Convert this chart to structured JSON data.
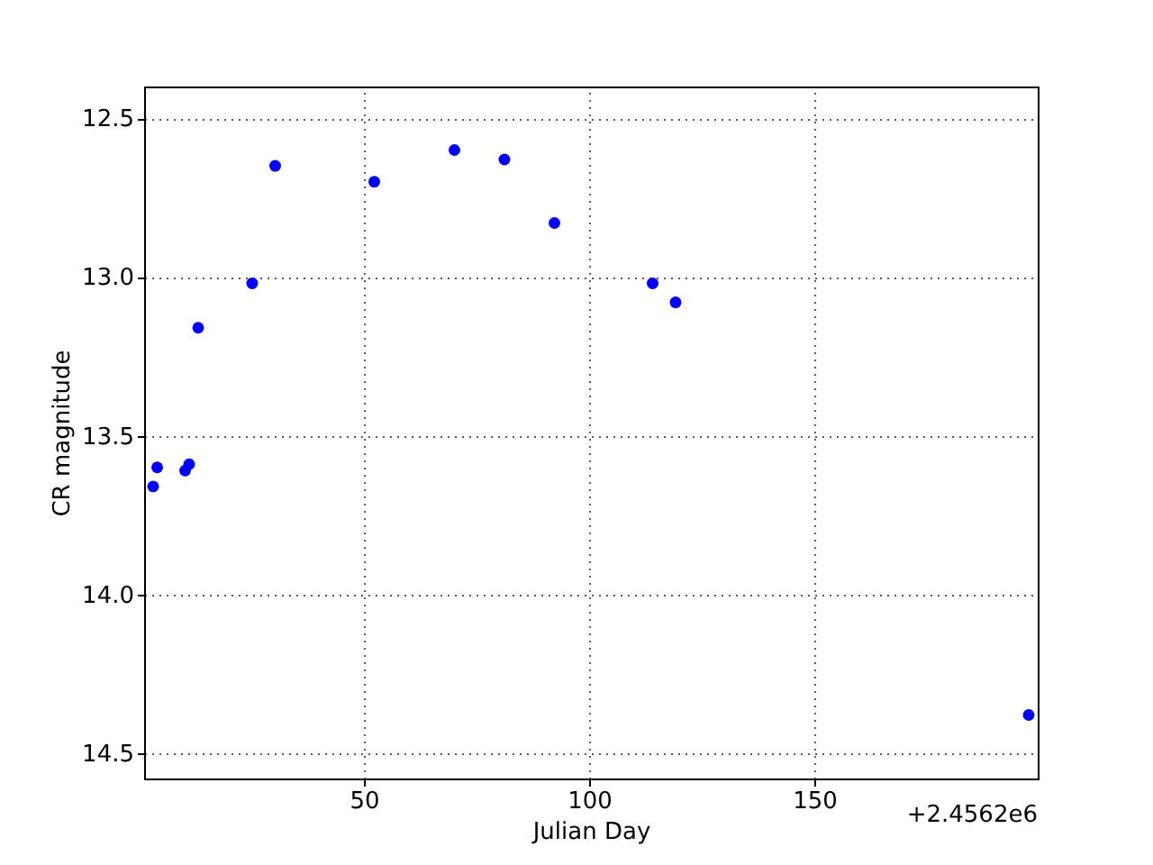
{
  "chart_data": {
    "type": "scatter",
    "xlabel": "Julian Day",
    "ylabel": "CR magnitude",
    "x": [
      3.2,
      4.1,
      10.3,
      11.2,
      13.2,
      25.2,
      30.3,
      52.3,
      70.1,
      81.2,
      92.3,
      114.1,
      119.2,
      197.6
    ],
    "values": [
      13.66,
      13.6,
      13.61,
      13.59,
      13.16,
      13.02,
      12.65,
      12.7,
      12.6,
      12.63,
      12.83,
      13.02,
      13.08,
      14.38
    ],
    "color": "#0000ff",
    "marker": "circle",
    "xlim": [
      1.2,
      199.6
    ],
    "xticks": [
      50,
      100,
      150
    ],
    "ylim": [
      14.58,
      12.4
    ],
    "yticks": [
      12.5,
      {
        "value": 13,
        "label": "13.0"
      },
      13.5,
      {
        "value": 14,
        "label": "14.0"
      },
      14.5
    ],
    "grid": true,
    "annotations": [
      "+2.4562e6"
    ]
  }
}
